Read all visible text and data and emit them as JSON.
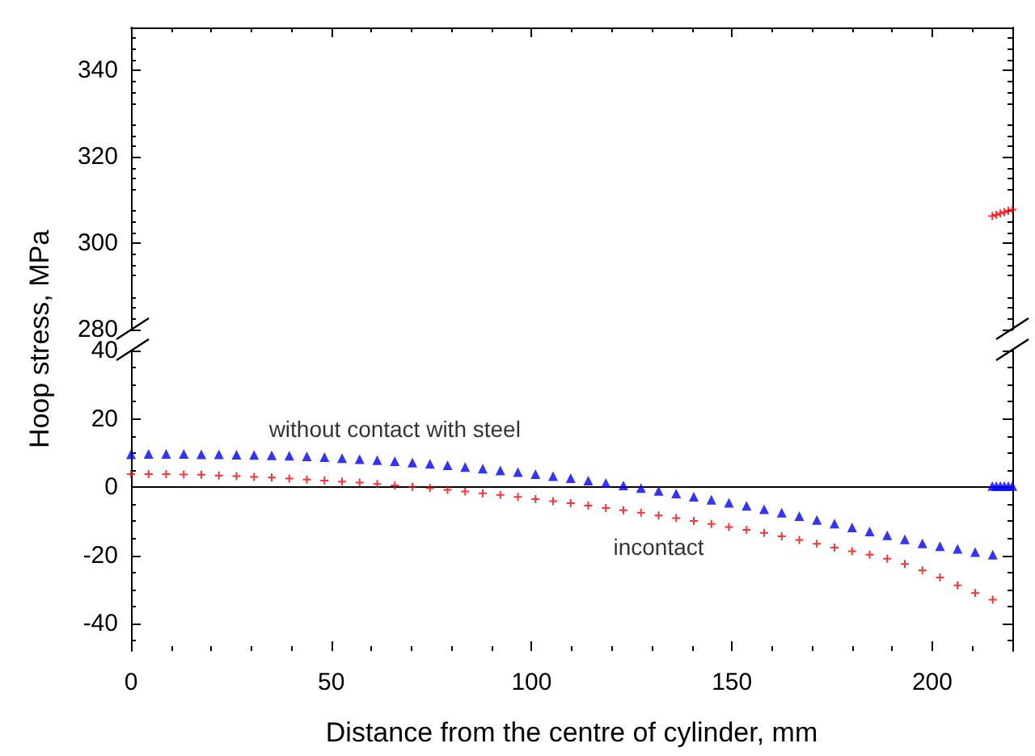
{
  "chart_data": [
    {
      "type": "scatter",
      "ylabel": "Hoop stress, MPa",
      "xlim": [
        0,
        220
      ],
      "xticks": [
        0,
        50,
        100,
        150,
        200
      ],
      "ylim": [
        280,
        350
      ],
      "yticks": [
        280,
        300,
        320,
        340
      ],
      "tick_labels": "y",
      "grid": false,
      "legend": false,
      "series": [
        {
          "color": "#ff0000",
          "marker": "cross",
          "x": [
            215,
            216,
            217,
            218,
            219,
            220
          ],
          "values": [
            306.3,
            306.6,
            306.9,
            307.2,
            307.5,
            307.8
          ]
        }
      ]
    },
    {
      "type": "scatter",
      "xlabel": "Distance from the centre of cylinder, mm",
      "xlim": [
        0,
        220
      ],
      "xticks": [
        0,
        50,
        100,
        150,
        200
      ],
      "ylim": [
        -48,
        40
      ],
      "yticks": [
        -40,
        -20,
        0,
        20,
        40
      ],
      "grid": false,
      "legend": false,
      "ref_lines": [
        {
          "axis": "y",
          "value": 0,
          "color": "#000000"
        }
      ],
      "series": [
        {
          "name": "without contact with steel",
          "color": "#0000ff",
          "marker": "triangle",
          "x": [
            0,
            4.39,
            8.78,
            13.17,
            17.56,
            21.95,
            26.34,
            30.73,
            35.12,
            39.51,
            43.9,
            48.29,
            52.68,
            57.07,
            61.46,
            65.85,
            70.24,
            74.63,
            79.02,
            83.41,
            87.8,
            92.19,
            96.58,
            100.97,
            105.36,
            109.75,
            114.14,
            118.53,
            122.92,
            127.31,
            131.7,
            136.09,
            140.48,
            144.87,
            149.26,
            153.65,
            158.04,
            162.43,
            166.82,
            171.21,
            175.6,
            179.99,
            184.38,
            188.77,
            193.16,
            197.55,
            201.94,
            206.33,
            210.72,
            215.11
          ],
          "values": [
            9.6,
            9.7,
            9.7,
            9.7,
            9.6,
            9.6,
            9.5,
            9.4,
            9.3,
            9.2,
            9.0,
            8.8,
            8.5,
            8.2,
            7.9,
            7.6,
            7.2,
            6.8,
            6.4,
            5.9,
            5.4,
            4.9,
            4.4,
            3.8,
            3.2,
            2.6,
            1.9,
            1.2,
            0.5,
            -0.3,
            -1.1,
            -1.9,
            -2.8,
            -3.7,
            -4.6,
            -5.5,
            -6.5,
            -7.5,
            -8.5,
            -9.6,
            -10.7,
            -11.8,
            -13.0,
            -14.1,
            -15.3,
            -16.5,
            -17.3,
            -18.1,
            -19.0,
            -19.8
          ]
        },
        {
          "name": "incontact",
          "color": "#ff0000",
          "marker": "cross",
          "x": [
            0,
            4.39,
            8.78,
            13.17,
            17.56,
            21.95,
            26.34,
            30.73,
            35.12,
            39.51,
            43.9,
            48.29,
            52.68,
            57.07,
            61.46,
            65.85,
            70.24,
            74.63,
            79.02,
            83.41,
            87.8,
            92.19,
            96.58,
            100.97,
            105.36,
            109.75,
            114.14,
            118.53,
            122.92,
            127.31,
            131.7,
            136.09,
            140.48,
            144.87,
            149.26,
            153.65,
            158.04,
            162.43,
            166.82,
            171.21,
            175.6,
            179.99,
            184.38,
            188.77,
            193.16,
            197.55,
            201.94,
            206.33,
            210.72,
            215.11
          ],
          "values": [
            3.8,
            3.8,
            3.8,
            3.7,
            3.6,
            3.4,
            3.2,
            3.0,
            2.8,
            2.5,
            2.2,
            1.9,
            1.6,
            1.3,
            0.9,
            0.5,
            0.1,
            -0.3,
            -0.8,
            -1.3,
            -1.8,
            -2.3,
            -2.9,
            -3.5,
            -4.1,
            -4.7,
            -5.4,
            -6.1,
            -6.8,
            -7.5,
            -8.3,
            -9.1,
            -9.9,
            -10.8,
            -11.7,
            -12.5,
            -13.4,
            -14.4,
            -15.5,
            -16.6,
            -17.7,
            -18.8,
            -19.8,
            -21.0,
            -22.5,
            -24.4,
            -26.5,
            -28.8,
            -31.0,
            -33.0
          ]
        },
        {
          "color": "#0000ff",
          "marker": "triangle",
          "x": [
            215,
            216,
            217,
            218,
            219,
            220
          ],
          "values": [
            0.3,
            0.3,
            0.3,
            0.3,
            0.3,
            0.3
          ]
        }
      ]
    }
  ]
}
